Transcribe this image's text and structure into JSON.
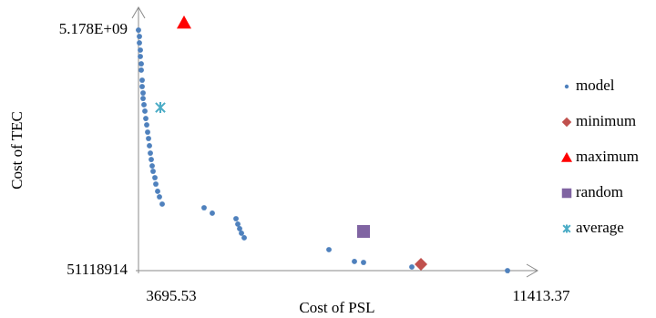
{
  "chart_data": {
    "type": "scatter",
    "x_label": "Cost of PSL",
    "y_label": "Cost of TEC",
    "xlim": [
      3695.53,
      12022
    ],
    "ylim": [
      51118914,
      5663500000
    ],
    "xticks": [
      3695.53,
      11413.37
    ],
    "yticks": [
      51118914,
      {
        "value": 5178000000,
        "label": "5.178E+09"
      }
    ],
    "legend": "right",
    "series": [
      {
        "name": "model",
        "color": "#4f81bd",
        "marker": "circle",
        "x": [
          3695.53,
          3715,
          3715,
          3734,
          3734,
          3753,
          3753,
          3772,
          3772,
          3791,
          3791,
          3810,
          3829,
          3848,
          3867,
          3886,
          3905,
          3924,
          3943,
          3962,
          3981,
          4000,
          4038,
          4057,
          4095,
          4133,
          4190,
          5064,
          5235,
          5730,
          5768,
          5806,
          5844,
          5901,
          7669,
          8201,
          8391,
          9399,
          11395
        ],
        "values": [
          5178000000,
          5042000000,
          4906000000,
          4751000000,
          4615000000,
          4458000000,
          4324000000,
          4110000000,
          3974000000,
          3838000000,
          3721000000,
          3586000000,
          3450000000,
          3294000000,
          3158000000,
          3003000000,
          2867000000,
          2712000000,
          2556000000,
          2420000000,
          2284000000,
          2168000000,
          2032000000,
          1896000000,
          1741000000,
          1624000000,
          1469000000,
          1391000000,
          1275000000,
          1158000000,
          1042000000,
          945000000,
          848000000,
          751000000,
          498000000,
          246000000,
          226000000,
          129000000,
          51118914
        ]
      },
      {
        "name": "minimum",
        "color": "#c0504d",
        "marker": "diamond",
        "x": [
          9589
        ],
        "values": [
          187000000
        ]
      },
      {
        "name": "maximum",
        "color": "#ff0000",
        "marker": "triangle",
        "x": [
          4646
        ],
        "values": [
          5333000000
        ]
      },
      {
        "name": "random",
        "color": "#8064a2",
        "marker": "square",
        "x": [
          8391
        ],
        "values": [
          886000000
        ]
      },
      {
        "name": "average",
        "color": "#4bacc6",
        "marker": "star",
        "x": [
          4152
        ],
        "values": [
          3527000000
        ]
      }
    ]
  }
}
